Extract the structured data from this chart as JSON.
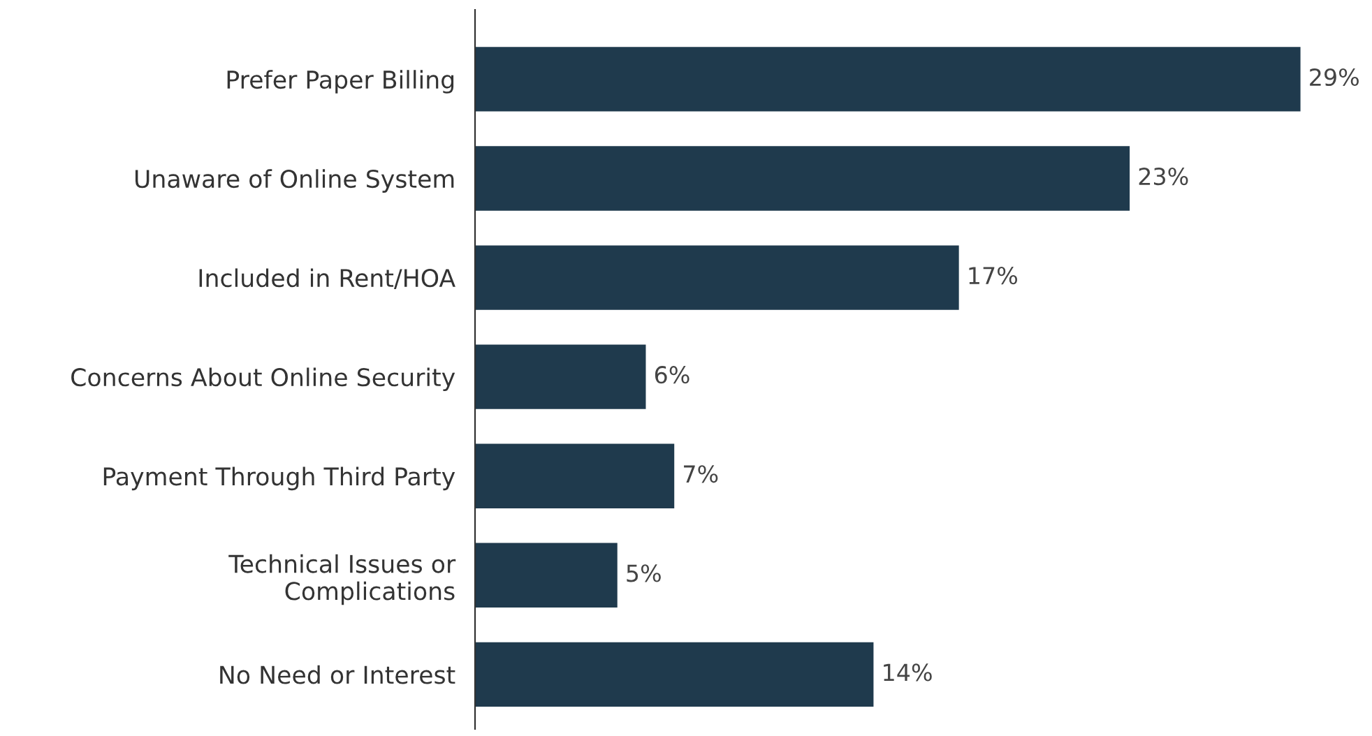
{
  "chart_data": {
    "type": "bar",
    "orientation": "horizontal",
    "categories": [
      "Prefer Paper Billing",
      "Unaware of Online System",
      "Included in Rent/HOA",
      "Concerns About Online Security",
      "Payment Through Third Party",
      "Technical Issues or\nComplications",
      "No Need or Interest"
    ],
    "values": [
      29,
      23,
      17,
      6,
      7,
      5,
      14
    ],
    "value_labels": [
      "29%",
      "23%",
      "17%",
      "6%",
      "7%",
      "5%",
      "14%"
    ],
    "color": "#1f3a4d",
    "grid": false,
    "legend": false
  }
}
